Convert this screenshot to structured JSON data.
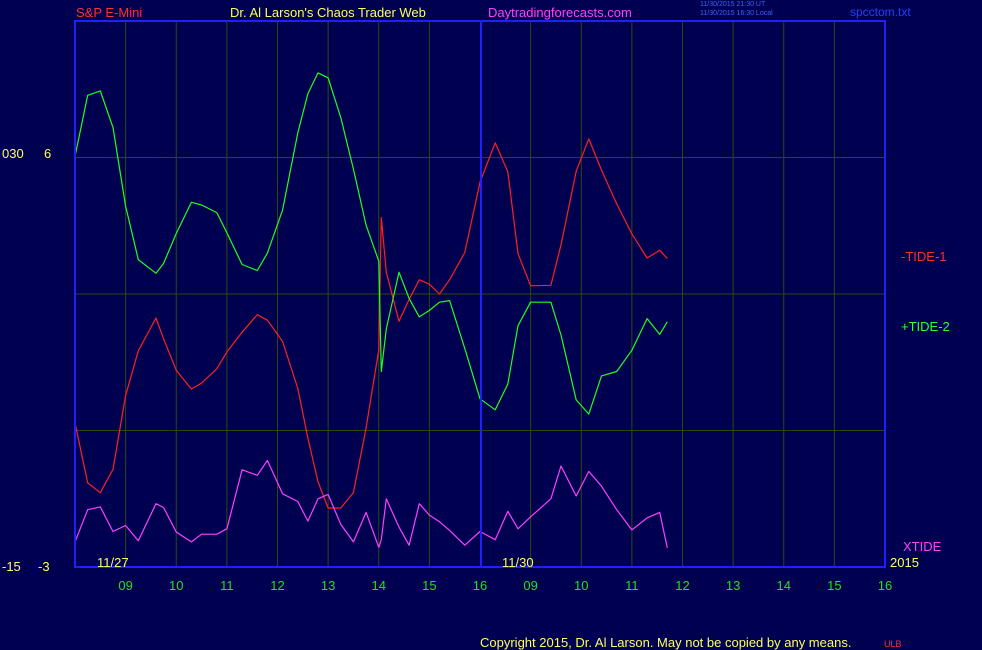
{
  "header": {
    "instrument": "S&P E-Mini",
    "publisher": "Dr. Al Larson's Chaos Trader Web",
    "site": "Daytradingforecasts.com",
    "stamp_line1": "11/30/2015 21:30 UT",
    "stamp_line2": "11/30/2015 16:30 Local",
    "file": "spcctom.txt"
  },
  "colors": {
    "background": "#000050",
    "frame": "#2020ff",
    "grid": "#2c4a10",
    "tide1": "#ff2020",
    "tide2": "#20ff20",
    "xtide": "#ff40ff",
    "x_tick": "#20e020",
    "text_yellow": "#ffff60"
  },
  "chart_data": {
    "type": "line",
    "title": "",
    "left_axis_labels": {
      "top_a": "030",
      "top_b": "6",
      "bottom_a": "-15",
      "bottom_b": "-3"
    },
    "x_ticks": [
      "09",
      "10",
      "11",
      "12",
      "13",
      "14",
      "15",
      "16",
      "09",
      "10",
      "11",
      "12",
      "13",
      "14",
      "15",
      "16"
    ],
    "date_labels": [
      "11/27",
      "11/30"
    ],
    "year_label": "2015",
    "x_range": [
      0,
      16
    ],
    "y_range": [
      0,
      100
    ],
    "grid": true,
    "series": [
      {
        "name": "-TIDE-1",
        "points": [
          [
            0.0,
            26.4
          ],
          [
            0.25,
            15.4
          ],
          [
            0.5,
            13.6
          ],
          [
            0.75,
            17.9
          ],
          [
            1.0,
            31.4
          ],
          [
            1.25,
            39.6
          ],
          [
            1.6,
            45.6
          ],
          [
            1.75,
            41.8
          ],
          [
            2.0,
            36.0
          ],
          [
            2.3,
            32.6
          ],
          [
            2.5,
            33.7
          ],
          [
            2.8,
            36.3
          ],
          [
            3.0,
            39.4
          ],
          [
            3.3,
            43.0
          ],
          [
            3.6,
            46.2
          ],
          [
            3.8,
            45.2
          ],
          [
            4.1,
            41.3
          ],
          [
            4.4,
            32.7
          ],
          [
            4.6,
            23.6
          ],
          [
            4.8,
            15.6
          ],
          [
            5.0,
            10.8
          ],
          [
            5.25,
            10.8
          ],
          [
            5.5,
            13.6
          ],
          [
            5.75,
            25.5
          ],
          [
            6.0,
            39.8
          ],
          [
            6.05,
            64.0
          ],
          [
            6.15,
            54.0
          ],
          [
            6.4,
            45.0
          ],
          [
            6.6,
            49.0
          ],
          [
            6.8,
            52.6
          ],
          [
            7.0,
            51.8
          ],
          [
            7.2,
            50.0
          ],
          [
            7.4,
            52.6
          ],
          [
            7.7,
            57.6
          ],
          [
            8.0,
            70.5
          ],
          [
            8.3,
            77.7
          ],
          [
            8.55,
            72.4
          ],
          [
            8.75,
            57.4
          ],
          [
            9.0,
            51.5
          ],
          [
            9.4,
            51.6
          ],
          [
            9.6,
            59.0
          ],
          [
            9.9,
            72.5
          ],
          [
            10.15,
            78.4
          ],
          [
            10.4,
            72.7
          ],
          [
            10.7,
            66.5
          ],
          [
            11.0,
            61.0
          ],
          [
            11.3,
            56.6
          ],
          [
            11.55,
            58.0
          ],
          [
            11.7,
            56.5
          ]
        ]
      },
      {
        "name": "+TIDE-2",
        "points": [
          [
            0.0,
            75.2
          ],
          [
            0.25,
            86.4
          ],
          [
            0.5,
            87.2
          ],
          [
            0.75,
            80.5
          ],
          [
            1.0,
            66.1
          ],
          [
            1.25,
            56.3
          ],
          [
            1.6,
            53.8
          ],
          [
            1.75,
            55.6
          ],
          [
            2.0,
            61.1
          ],
          [
            2.3,
            66.8
          ],
          [
            2.5,
            66.3
          ],
          [
            2.8,
            64.9
          ],
          [
            3.0,
            61.2
          ],
          [
            3.3,
            55.4
          ],
          [
            3.6,
            54.3
          ],
          [
            3.8,
            57.5
          ],
          [
            4.1,
            65.4
          ],
          [
            4.4,
            79.5
          ],
          [
            4.6,
            86.7
          ],
          [
            4.8,
            90.5
          ],
          [
            5.0,
            89.6
          ],
          [
            5.25,
            82.3
          ],
          [
            5.5,
            72.9
          ],
          [
            5.75,
            62.6
          ],
          [
            6.0,
            56.0
          ],
          [
            6.05,
            35.8
          ],
          [
            6.15,
            43.6
          ],
          [
            6.4,
            54.0
          ],
          [
            6.6,
            49.2
          ],
          [
            6.8,
            45.8
          ],
          [
            7.0,
            47.0
          ],
          [
            7.2,
            48.5
          ],
          [
            7.4,
            48.8
          ],
          [
            7.7,
            40.0
          ],
          [
            8.0,
            30.8
          ],
          [
            8.3,
            28.8
          ],
          [
            8.55,
            33.5
          ],
          [
            8.75,
            44.2
          ],
          [
            9.0,
            48.5
          ],
          [
            9.4,
            48.5
          ],
          [
            9.6,
            42.5
          ],
          [
            9.9,
            30.6
          ],
          [
            10.15,
            28.0
          ],
          [
            10.4,
            35.0
          ],
          [
            10.7,
            35.8
          ],
          [
            11.0,
            39.7
          ],
          [
            11.3,
            45.5
          ],
          [
            11.55,
            42.6
          ],
          [
            11.7,
            44.9
          ]
        ]
      },
      {
        "name": "XTIDE",
        "points": [
          [
            0.0,
            4.6
          ],
          [
            0.25,
            10.5
          ],
          [
            0.5,
            11.0
          ],
          [
            0.75,
            6.5
          ],
          [
            1.0,
            7.6
          ],
          [
            1.25,
            4.8
          ],
          [
            1.6,
            11.6
          ],
          [
            1.75,
            10.9
          ],
          [
            2.0,
            6.4
          ],
          [
            2.3,
            4.6
          ],
          [
            2.5,
            6.0
          ],
          [
            2.8,
            6.0
          ],
          [
            3.0,
            7.0
          ],
          [
            3.3,
            17.8
          ],
          [
            3.6,
            16.8
          ],
          [
            3.8,
            19.5
          ],
          [
            4.1,
            13.4
          ],
          [
            4.4,
            12.0
          ],
          [
            4.6,
            8.4
          ],
          [
            4.8,
            12.5
          ],
          [
            5.0,
            13.3
          ],
          [
            5.25,
            7.8
          ],
          [
            5.5,
            4.6
          ],
          [
            5.75,
            10.0
          ],
          [
            6.0,
            3.6
          ],
          [
            6.05,
            5.0
          ],
          [
            6.15,
            12.5
          ],
          [
            6.4,
            7.3
          ],
          [
            6.6,
            4.0
          ],
          [
            6.8,
            11.6
          ],
          [
            7.0,
            9.5
          ],
          [
            7.2,
            8.3
          ],
          [
            7.4,
            6.7
          ],
          [
            7.7,
            4.0
          ],
          [
            8.0,
            6.5
          ],
          [
            8.3,
            5.0
          ],
          [
            8.55,
            10.2
          ],
          [
            8.75,
            7.0
          ],
          [
            9.0,
            9.2
          ],
          [
            9.4,
            12.5
          ],
          [
            9.6,
            18.5
          ],
          [
            9.9,
            13.0
          ],
          [
            10.15,
            17.5
          ],
          [
            10.4,
            14.8
          ],
          [
            10.7,
            10.5
          ],
          [
            11.0,
            6.8
          ],
          [
            11.3,
            9.0
          ],
          [
            11.55,
            10.0
          ],
          [
            11.7,
            3.5
          ]
        ]
      }
    ]
  },
  "footer": {
    "copyright": "Copyright 2015, Dr. Al Larson. May not be copied by any means.",
    "mark": "ULB"
  }
}
